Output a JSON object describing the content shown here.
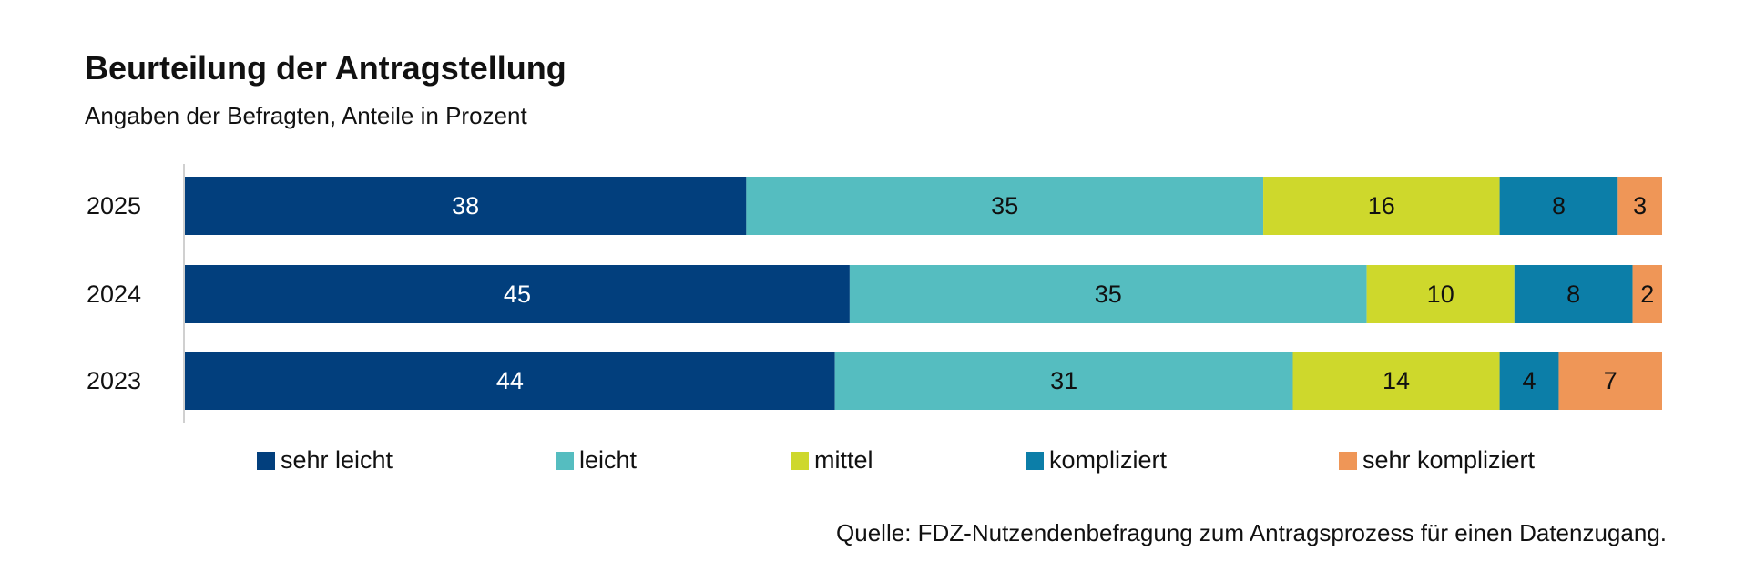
{
  "chart_data": {
    "type": "bar",
    "orientation": "horizontal",
    "stacked": "100%",
    "title": "Beurteilung der Antragstellung",
    "subtitle": "Angaben der Befragten, Anteile in Prozent",
    "categories": [
      "2025",
      "2024",
      "2023"
    ],
    "series": [
      {
        "name": "sehr leicht",
        "color": "#023f7d",
        "label_color": "#ffffff",
        "values": [
          38,
          45,
          44
        ]
      },
      {
        "name": "leicht",
        "color": "#55bdc0",
        "label_color": "#111111",
        "values": [
          35,
          35,
          31
        ]
      },
      {
        "name": "mittel",
        "color": "#ced82c",
        "label_color": "#111111",
        "values": [
          16,
          10,
          14
        ]
      },
      {
        "name": "kompliziert",
        "color": "#0c7ea8",
        "label_color": "#111111",
        "values": [
          8,
          8,
          4
        ]
      },
      {
        "name": "sehr kompliziert",
        "color": "#ef9657",
        "label_color": "#111111",
        "values": [
          3,
          2,
          7
        ]
      }
    ],
    "xlim": [
      0,
      100
    ],
    "grid": false,
    "legend_position": "bottom",
    "source": "Quelle: FDZ-Nutzendenbefragung zum Antragsprozess für einen Datenzugang."
  }
}
